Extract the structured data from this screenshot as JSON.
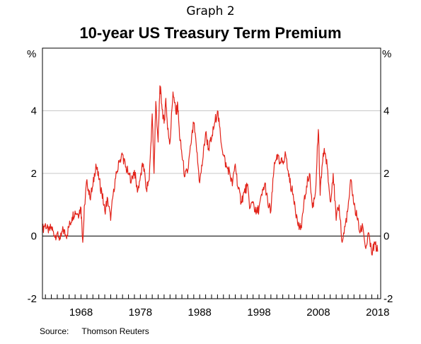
{
  "header": {
    "graph_number": "Graph 2"
  },
  "source": {
    "label": "Source:",
    "text": "Thomson Reuters"
  },
  "colors": {
    "series": "#e2231a",
    "grid": "#c8c8c8",
    "axis": "#000000"
  },
  "chart_data": {
    "type": "line",
    "title": "10-year US Treasury Term Premium",
    "y_unit_left": "%",
    "y_unit_right": "%",
    "xlim": [
      1961.5,
      2018.5
    ],
    "ylim": [
      -2,
      6
    ],
    "y_ticks": [
      -2,
      0,
      2,
      4
    ],
    "y_tick_labels": [
      "-2",
      "0",
      "2",
      "4"
    ],
    "x_tick_labels": [
      "1968",
      "1978",
      "1988",
      "1998",
      "2008",
      "2018"
    ],
    "x_tick_positions": [
      1968,
      1978,
      1988,
      1998,
      2008,
      2018
    ],
    "grid": true,
    "zero_line": true,
    "legend": "none",
    "series": [
      {
        "x": [
          1961.5,
          1962.0,
          1962.5,
          1963.0,
          1963.5,
          1964.0,
          1964.5,
          1965.0,
          1965.5,
          1966.0,
          1966.5,
          1967.0,
          1967.5,
          1968.0,
          1968.3,
          1968.6,
          1969.0,
          1969.5,
          1970.0,
          1970.5,
          1971.0,
          1971.5,
          1972.0,
          1972.5,
          1973.0,
          1973.5,
          1974.0,
          1974.5,
          1975.0,
          1975.5,
          1976.0,
          1976.5,
          1977.0,
          1977.5,
          1978.0,
          1978.5,
          1979.0,
          1979.5,
          1980.0,
          1980.3,
          1980.6,
          1981.0,
          1981.3,
          1981.6,
          1982.0,
          1982.3,
          1982.6,
          1983.0,
          1983.5,
          1984.0,
          1984.3,
          1984.6,
          1985.0,
          1985.5,
          1986.0,
          1986.5,
          1987.0,
          1987.5,
          1988.0,
          1988.5,
          1989.0,
          1989.5,
          1990.0,
          1990.5,
          1991.0,
          1991.5,
          1992.0,
          1992.5,
          1993.0,
          1993.5,
          1994.0,
          1994.5,
          1995.0,
          1995.5,
          1996.0,
          1996.5,
          1997.0,
          1997.5,
          1998.0,
          1998.5,
          1999.0,
          1999.5,
          2000.0,
          2000.5,
          2001.0,
          2001.5,
          2002.0,
          2002.5,
          2003.0,
          2003.5,
          2004.0,
          2004.5,
          2005.0,
          2005.5,
          2006.0,
          2006.5,
          2007.0,
          2007.5,
          2008.0,
          2008.3,
          2008.6,
          2009.0,
          2009.5,
          2010.0,
          2010.5,
          2011.0,
          2011.5,
          2012.0,
          2012.5,
          2013.0,
          2013.5,
          2014.0,
          2014.5,
          2015.0,
          2015.5,
          2016.0,
          2016.5,
          2017.0,
          2017.5,
          2018.0
        ],
        "y": [
          0.2,
          0.4,
          0.1,
          0.3,
          0.0,
          0.1,
          -0.1,
          0.2,
          0.0,
          0.3,
          0.6,
          0.8,
          0.7,
          0.9,
          -0.2,
          1.0,
          1.8,
          1.2,
          1.6,
          2.3,
          1.8,
          1.4,
          0.8,
          1.2,
          0.5,
          1.5,
          2.0,
          2.4,
          2.6,
          2.2,
          2.0,
          1.8,
          2.1,
          1.4,
          1.9,
          2.3,
          1.5,
          1.8,
          3.9,
          2.0,
          4.3,
          3.0,
          4.8,
          4.2,
          3.6,
          4.4,
          3.4,
          3.0,
          4.6,
          3.9,
          4.2,
          3.2,
          2.6,
          1.9,
          2.1,
          2.9,
          3.6,
          2.7,
          1.7,
          2.4,
          3.3,
          2.8,
          3.1,
          3.6,
          4.0,
          3.2,
          2.6,
          2.2,
          2.1,
          1.6,
          2.3,
          1.5,
          1.1,
          1.4,
          1.6,
          0.9,
          1.1,
          0.7,
          0.9,
          1.3,
          1.7,
          1.0,
          0.8,
          2.1,
          2.6,
          2.3,
          2.4,
          2.6,
          1.9,
          1.5,
          1.1,
          0.4,
          0.2,
          0.9,
          1.6,
          2.0,
          0.9,
          1.4,
          3.4,
          1.3,
          2.2,
          2.8,
          2.2,
          1.1,
          2.0,
          0.5,
          1.0,
          -0.2,
          0.3,
          0.9,
          1.8,
          1.0,
          0.6,
          0.1,
          0.3,
          -0.4,
          0.1,
          -0.6,
          -0.2,
          -0.5
        ]
      }
    ]
  }
}
